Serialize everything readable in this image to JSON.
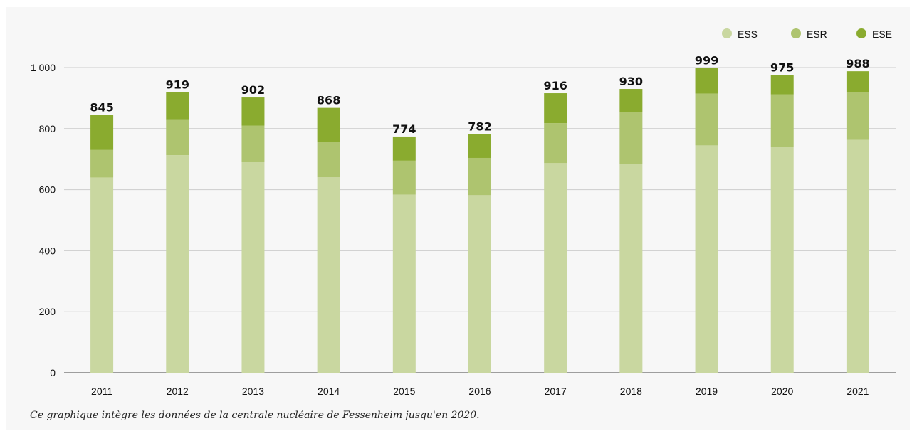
{
  "note": "Ce graphique intègre les données de la centrale nucléaire de Fessenheim jusqu'en 2020.",
  "chart_data": {
    "type": "bar",
    "stacked": true,
    "categories": [
      "2011",
      "2012",
      "2013",
      "2014",
      "2015",
      "2016",
      "2017",
      "2018",
      "2019",
      "2020",
      "2021"
    ],
    "series": [
      {
        "name": "ESS",
        "color": "#c9d7a0",
        "values": [
          640,
          713,
          690,
          641,
          584,
          582,
          687,
          685,
          745,
          741,
          763
        ]
      },
      {
        "name": "ESR",
        "color": "#aec46f",
        "values": [
          90,
          115,
          120,
          115,
          111,
          122,
          131,
          170,
          170,
          171,
          157
        ]
      },
      {
        "name": "ESE",
        "color": "#8aab2f",
        "values": [
          115,
          91,
          92,
          112,
          79,
          78,
          98,
          75,
          84,
          63,
          68
        ]
      }
    ],
    "totals": [
      845,
      919,
      902,
      868,
      774,
      782,
      916,
      930,
      999,
      975,
      988
    ],
    "y_ticks": [
      "0",
      "200",
      "400",
      "600",
      "800",
      "1 000"
    ],
    "ylim": [
      0,
      1000
    ],
    "grid": true,
    "legend_position": "top-right"
  }
}
